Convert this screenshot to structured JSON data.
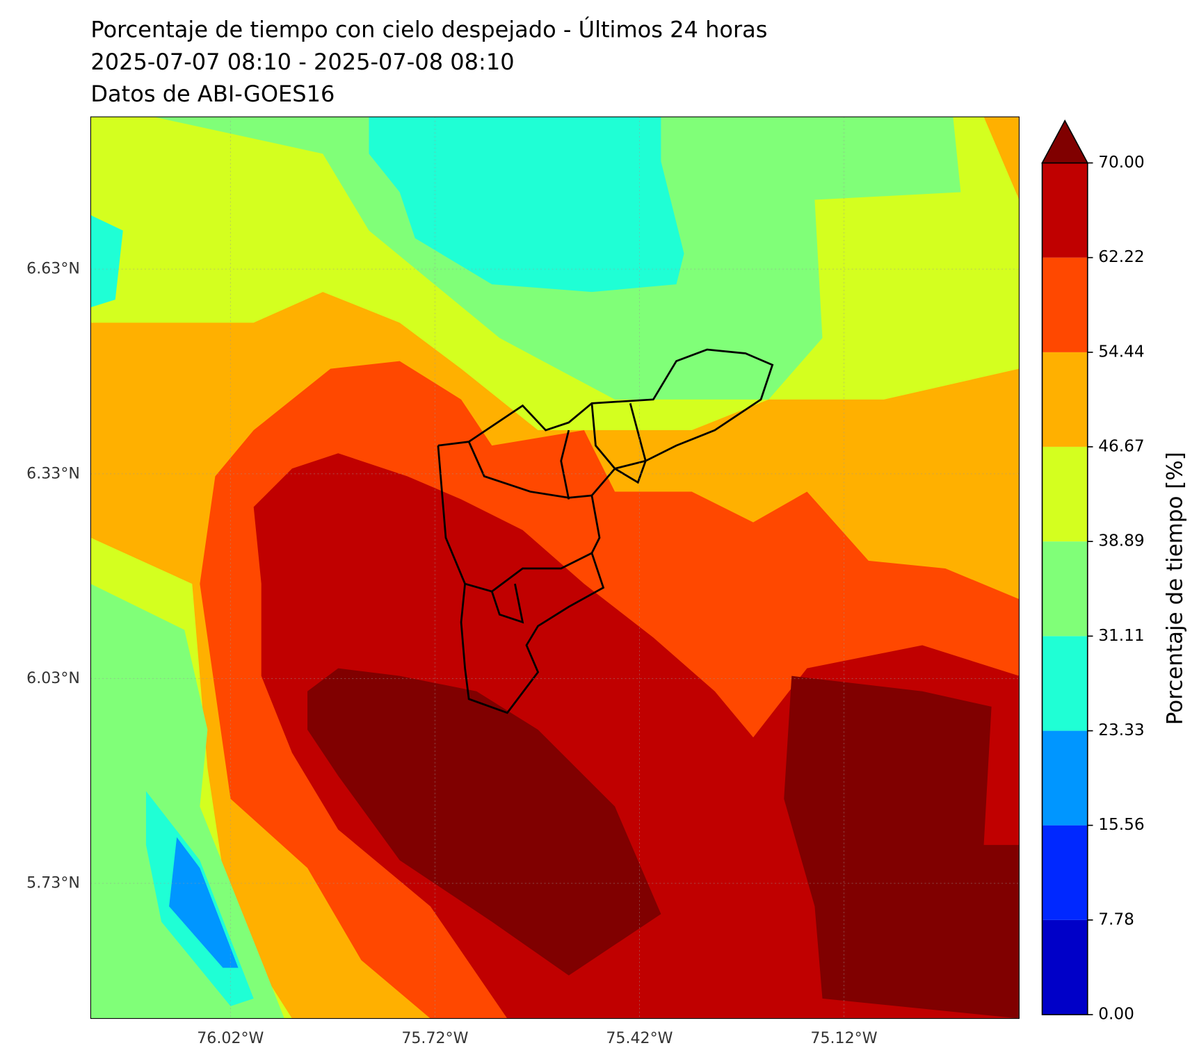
{
  "chart_data": {
    "type": "contourf",
    "title": "Porcentaje de tiempo con cielo despejado - Últimos 24 horas",
    "subtitle": "2025-07-07 08:10 - 2025-07-08 08:10",
    "source": "Datos de ABI-GOES16",
    "xlim": [
      -76.225,
      -74.863
    ],
    "ylim": [
      5.532,
      6.853
    ],
    "xticks": [
      {
        "value": -76.02,
        "label": "76.02°W"
      },
      {
        "value": -75.72,
        "label": "75.72°W"
      },
      {
        "value": -75.42,
        "label": "75.42°W"
      },
      {
        "value": -75.12,
        "label": "75.12°W"
      }
    ],
    "yticks": [
      {
        "value": 5.73,
        "label": "5.73°N"
      },
      {
        "value": 6.03,
        "label": "6.03°N"
      },
      {
        "value": 6.33,
        "label": "6.33°N"
      },
      {
        "value": 6.63,
        "label": "6.63°N"
      }
    ],
    "grid": true,
    "colorbar": {
      "label": "Porcentaje de tiempo [%]",
      "ticks": [
        {
          "value": 0,
          "label": "0.00"
        },
        7.78,
        15.56,
        23.33,
        31.11,
        38.89,
        46.67,
        54.44,
        62.22,
        {
          "value": 70,
          "label": "70.00"
        }
      ],
      "colors": [
        "#0000c8",
        "#0028ff",
        "#0096ff",
        "#1fffd5",
        "#80ff78",
        "#d4ff1f",
        "#ffb000",
        "#ff4800",
        "#c00000"
      ],
      "extend_color": "#800000"
    }
  }
}
